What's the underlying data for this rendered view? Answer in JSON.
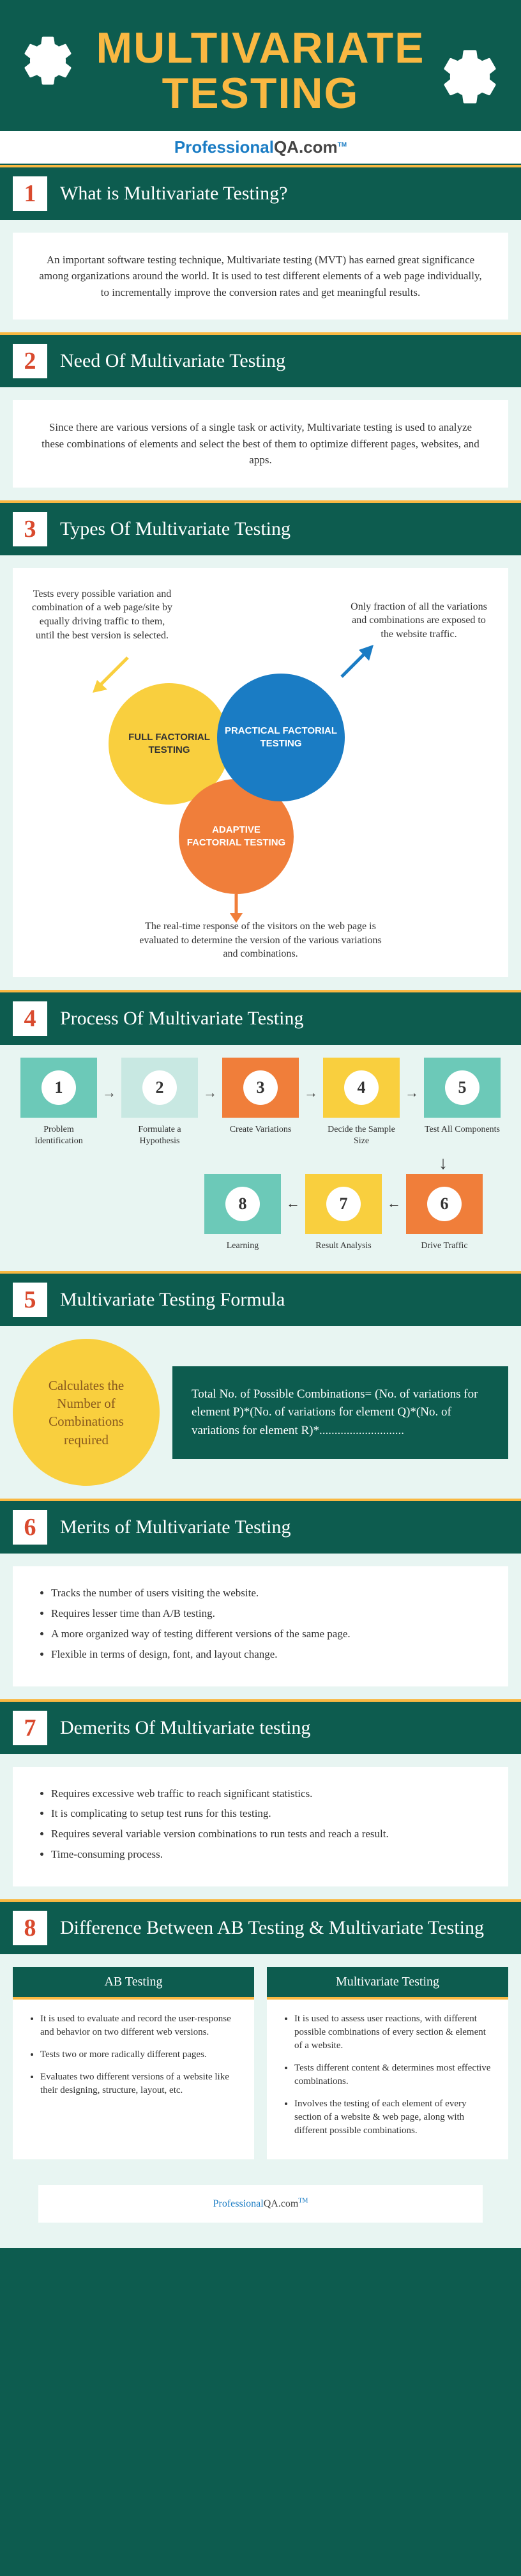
{
  "header": {
    "title": "MULTIVARIATE TESTING"
  },
  "brand": {
    "pro": "Professional",
    "qa": "QA.com",
    "tm": "TM"
  },
  "colors": {
    "bg_dark": "#0d5c4f",
    "accent_yellow": "#f9b842",
    "accent_orange": "#f07e3a",
    "accent_blue": "#1a7cc4",
    "content_bg": "#e8f5f2",
    "panel_bg": "#ffffff",
    "number_red": "#d94a2e",
    "text_dark": "#333333"
  },
  "sections": [
    {
      "num": "1",
      "title": "What is Multivariate Testing?"
    },
    {
      "num": "2",
      "title": "Need Of Multivariate Testing"
    },
    {
      "num": "3",
      "title": "Types Of Multivariate Testing"
    },
    {
      "num": "4",
      "title": "Process Of Multivariate Testing"
    },
    {
      "num": "5",
      "title": "Multivariate Testing Formula"
    },
    {
      "num": "6",
      "title": "Merits of Multivariate Testing"
    },
    {
      "num": "7",
      "title": "Demerits Of Multivariate testing"
    },
    {
      "num": "8",
      "title": "Difference Between AB Testing & Multivariate Testing"
    }
  ],
  "s1_body": "An important software testing technique, Multivariate testing (MVT) has earned great significance among organizations around the world. It is used to test different elements of a web page individually, to incrementally improve the conversion rates and get meaningful results.",
  "s2_body": "Since there are various versions of a single task or activity, Multivariate testing is used to analyze these combinations of elements and select the best of them to optimize different pages, websites, and apps.",
  "types": {
    "left_text": "Tests every possible variation and combination of a web page/site by equally driving traffic to them, until the best version is selected.",
    "right_text": "Only fraction of all the variations and combinations are exposed to the website traffic.",
    "bottom_text": "The real-time response of the visitors on the web page is evaluated to determine the version of the various variations and combinations.",
    "c1": "FULL FACTORIAL TESTING",
    "c2": "PRACTICAL FACTORIAL TESTING",
    "c3": "ADAPTIVE FACTORIAL TESTING",
    "c1_color": "#f9cf3e",
    "c2_color": "#1a7cc4",
    "c3_color": "#f07e3a"
  },
  "process": {
    "steps": [
      {
        "n": "1",
        "label": "Problem Identification",
        "bg": "#6cc9b8"
      },
      {
        "n": "2",
        "label": "Formulate a Hypothesis",
        "bg": "#c8e8e2"
      },
      {
        "n": "3",
        "label": "Create Variations",
        "bg": "#f07e3a"
      },
      {
        "n": "4",
        "label": "Decide the Sample Size",
        "bg": "#f9cf3e"
      },
      {
        "n": "5",
        "label": "Test All Components",
        "bg": "#6cc9b8"
      },
      {
        "n": "6",
        "label": "Drive Traffic",
        "bg": "#f07e3a"
      },
      {
        "n": "7",
        "label": "Result Analysis",
        "bg": "#f9cf3e"
      },
      {
        "n": "8",
        "label": "Learning",
        "bg": "#6cc9b8"
      }
    ]
  },
  "formula": {
    "circle": "Calculates the Number of Combinations required",
    "box": "Total No. of Possible Combinations= (No. of variations for element P)*(No. of variations for element Q)*(No. of variations for element R)*............................"
  },
  "merits": [
    "Tracks the number of users visiting the website.",
    "Requires lesser time than A/B testing.",
    "A more organized way of testing different versions of the same page.",
    "Flexible in terms of design, font, and layout change."
  ],
  "demerits": [
    "Requires excessive web traffic to reach significant statistics.",
    "It is complicating to setup test runs for this testing.",
    "Requires several variable version combinations to run tests and reach a result.",
    "Time-consuming process."
  ],
  "compare": {
    "col1_head": "AB Testing",
    "col2_head": "Multivariate Testing",
    "col1": [
      "It is used to evaluate and record the user-response and behavior on two different web versions.",
      "Tests two or more radically different pages.",
      "Evaluates two different versions of a website like their designing, structure, layout, etc."
    ],
    "col2": [
      "It is used to assess user reactions, with different possible combinations of every section & element of a website.",
      "Tests different content & determines most effective combinations.",
      "Involves the testing of each element of every section of a website & web page, along with different possible combinations."
    ]
  }
}
